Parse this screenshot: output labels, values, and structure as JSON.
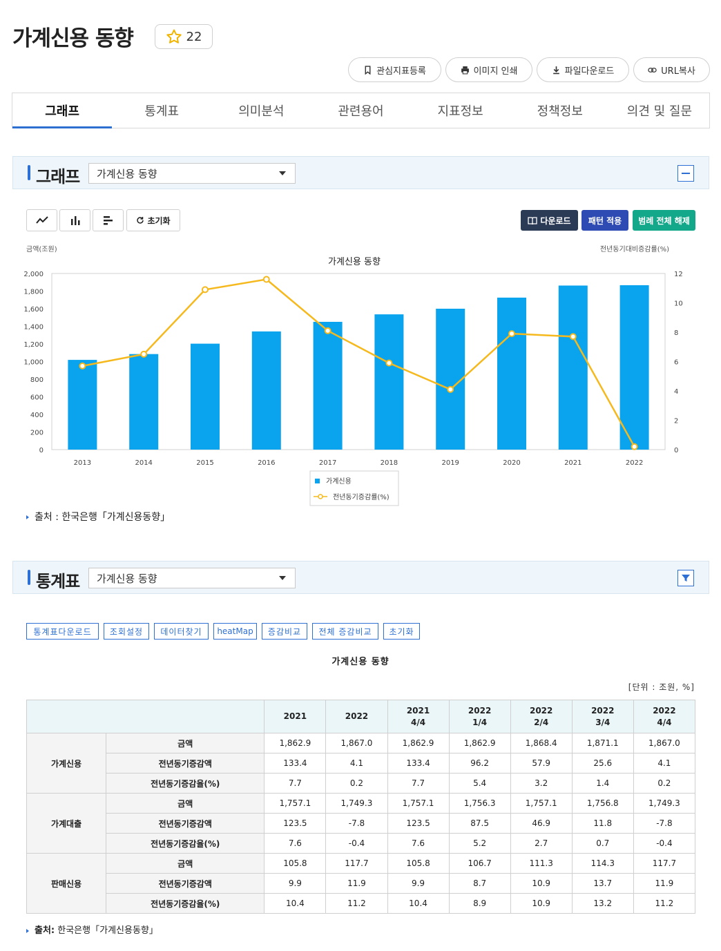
{
  "header": {
    "title": "가계신용 동향",
    "star_count": "22",
    "actions": [
      "관심지표등록",
      "이미지 인쇄",
      "파일다운로드",
      "URL복사"
    ]
  },
  "tabs": [
    "그래프",
    "통계표",
    "의미분석",
    "관련용어",
    "지표정보",
    "정책정보",
    "의견 및 질문"
  ],
  "graph_section": {
    "title": "그래프",
    "select_value": "가계신용 동향",
    "reset_label": "초기화",
    "download_label": "다운로드",
    "pattern_label": "패턴 적용",
    "legend_clear_label": "범례 전체 해제",
    "source": "출처 : 한국은행「가계신용동향」"
  },
  "chart_data": {
    "type": "bar",
    "title": "가계신용 동향",
    "ylabel": "금액(조원)",
    "y2label": "전년동기대비증감률(%)",
    "categories": [
      "2013",
      "2014",
      "2015",
      "2016",
      "2017",
      "2018",
      "2019",
      "2020",
      "2021",
      "2022"
    ],
    "ylim": [
      0,
      2000
    ],
    "yticks": [
      "0",
      "200",
      "400",
      "600",
      "800",
      "1,000",
      "1,200",
      "1,400",
      "1,600",
      "1,800",
      "2,000"
    ],
    "y2lim": [
      0,
      12
    ],
    "y2ticks": [
      "0",
      "2",
      "4",
      "6",
      "8",
      "10",
      "12"
    ],
    "series": [
      {
        "name": "가계신용",
        "type": "bar",
        "axis": "left",
        "color": "#0aa4ee",
        "values": [
          1019,
          1085,
          1203,
          1342,
          1451,
          1536,
          1600,
          1726,
          1863,
          1867
        ]
      },
      {
        "name": "전년동기증감률(%)",
        "type": "line",
        "axis": "right",
        "color": "#f5b91e",
        "values": [
          5.7,
          6.5,
          10.9,
          11.6,
          8.1,
          5.9,
          4.1,
          7.9,
          7.7,
          0.2
        ]
      }
    ],
    "legend": "bottom-center",
    "grid": false
  },
  "stat_section": {
    "title": "통계표",
    "select_value": "가계신용 동향",
    "buttons": [
      "통계표다운로드",
      "조회설정",
      "데이터찾기",
      "heatMap",
      "증감비교",
      "전체 증감비교",
      "초기화"
    ],
    "table_title": "가계신용 동향",
    "unit": "[단위 : 조원, %]",
    "columns": [
      [
        "2021",
        ""
      ],
      [
        "2022",
        ""
      ],
      [
        "2021",
        "4/4"
      ],
      [
        "2022",
        "1/4"
      ],
      [
        "2022",
        "2/4"
      ],
      [
        "2022",
        "3/4"
      ],
      [
        "2022",
        "4/4"
      ]
    ],
    "groups": [
      {
        "name": "가계신용",
        "rows": [
          {
            "label": "금액",
            "values": [
              "1,862.9",
              "1,867.0",
              "1,862.9",
              "1,862.9",
              "1,868.4",
              "1,871.1",
              "1,867.0"
            ]
          },
          {
            "label": "전년동기증감액",
            "values": [
              "133.4",
              "4.1",
              "133.4",
              "96.2",
              "57.9",
              "25.6",
              "4.1"
            ]
          },
          {
            "label": "전년동기증감율(%)",
            "values": [
              "7.7",
              "0.2",
              "7.7",
              "5.4",
              "3.2",
              "1.4",
              "0.2"
            ]
          }
        ]
      },
      {
        "name": "가계대출",
        "rows": [
          {
            "label": "금액",
            "values": [
              "1,757.1",
              "1,749.3",
              "1,757.1",
              "1,756.3",
              "1,757.1",
              "1,756.8",
              "1,749.3"
            ]
          },
          {
            "label": "전년동기증감액",
            "values": [
              "123.5",
              "-7.8",
              "123.5",
              "87.5",
              "46.9",
              "11.8",
              "-7.8"
            ]
          },
          {
            "label": "전년동기증감율(%)",
            "values": [
              "7.6",
              "-0.4",
              "7.6",
              "5.2",
              "2.7",
              "0.7",
              "-0.4"
            ]
          }
        ]
      },
      {
        "name": "판매신용",
        "rows": [
          {
            "label": "금액",
            "values": [
              "105.8",
              "117.7",
              "105.8",
              "106.7",
              "111.3",
              "114.3",
              "117.7"
            ]
          },
          {
            "label": "전년동기증감액",
            "values": [
              "9.9",
              "11.9",
              "9.9",
              "8.7",
              "10.9",
              "13.7",
              "11.9"
            ]
          },
          {
            "label": "전년동기증감율(%)",
            "values": [
              "10.4",
              "11.2",
              "10.4",
              "8.9",
              "10.9",
              "13.2",
              "11.2"
            ]
          }
        ]
      }
    ],
    "source_label": "출처:",
    "source_text": "한국은행「가계신용동향」"
  }
}
